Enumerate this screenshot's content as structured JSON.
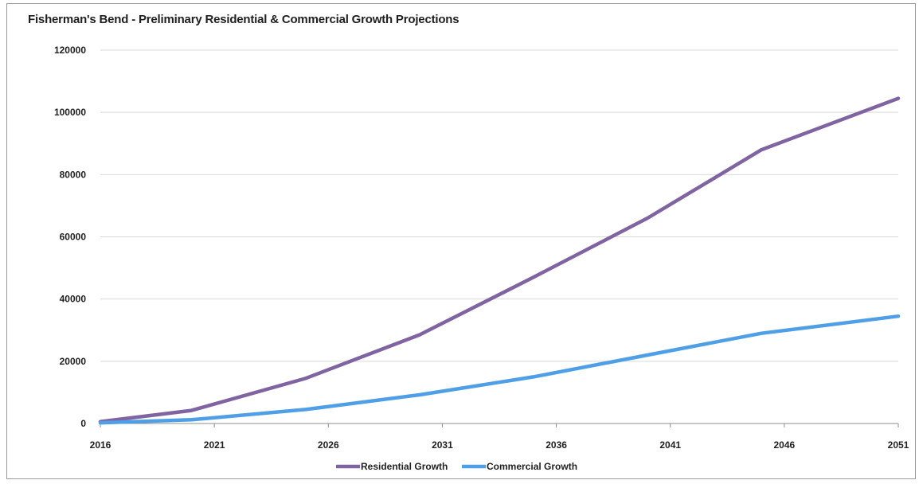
{
  "chart_data": {
    "type": "line",
    "title": "Fisherman's Bend - Preliminary Residential & Commercial Growth Projections",
    "xlabel": "",
    "ylabel": "",
    "x_ticks": [
      2016,
      2021,
      2026,
      2031,
      2036,
      2041,
      2046,
      2051
    ],
    "y_ticks": [
      0,
      20000,
      40000,
      60000,
      80000,
      100000,
      120000
    ],
    "xlim": [
      2016,
      2051
    ],
    "ylim": [
      0,
      120000
    ],
    "grid": true,
    "legend_position": "bottom",
    "series": [
      {
        "name": "Residential Growth",
        "color": "#8064a2",
        "x": [
          2016,
          2020,
          2025,
          2030,
          2035,
          2040,
          2045,
          2051
        ],
        "values": [
          600,
          4200,
          14500,
          28500,
          47000,
          66000,
          88000,
          104500
        ]
      },
      {
        "name": "Commercial Growth",
        "color": "#4f9fe6",
        "x": [
          2016,
          2020,
          2025,
          2030,
          2035,
          2040,
          2045,
          2051
        ],
        "values": [
          200,
          1200,
          4500,
          9200,
          15000,
          22000,
          29000,
          34500
        ]
      }
    ]
  }
}
